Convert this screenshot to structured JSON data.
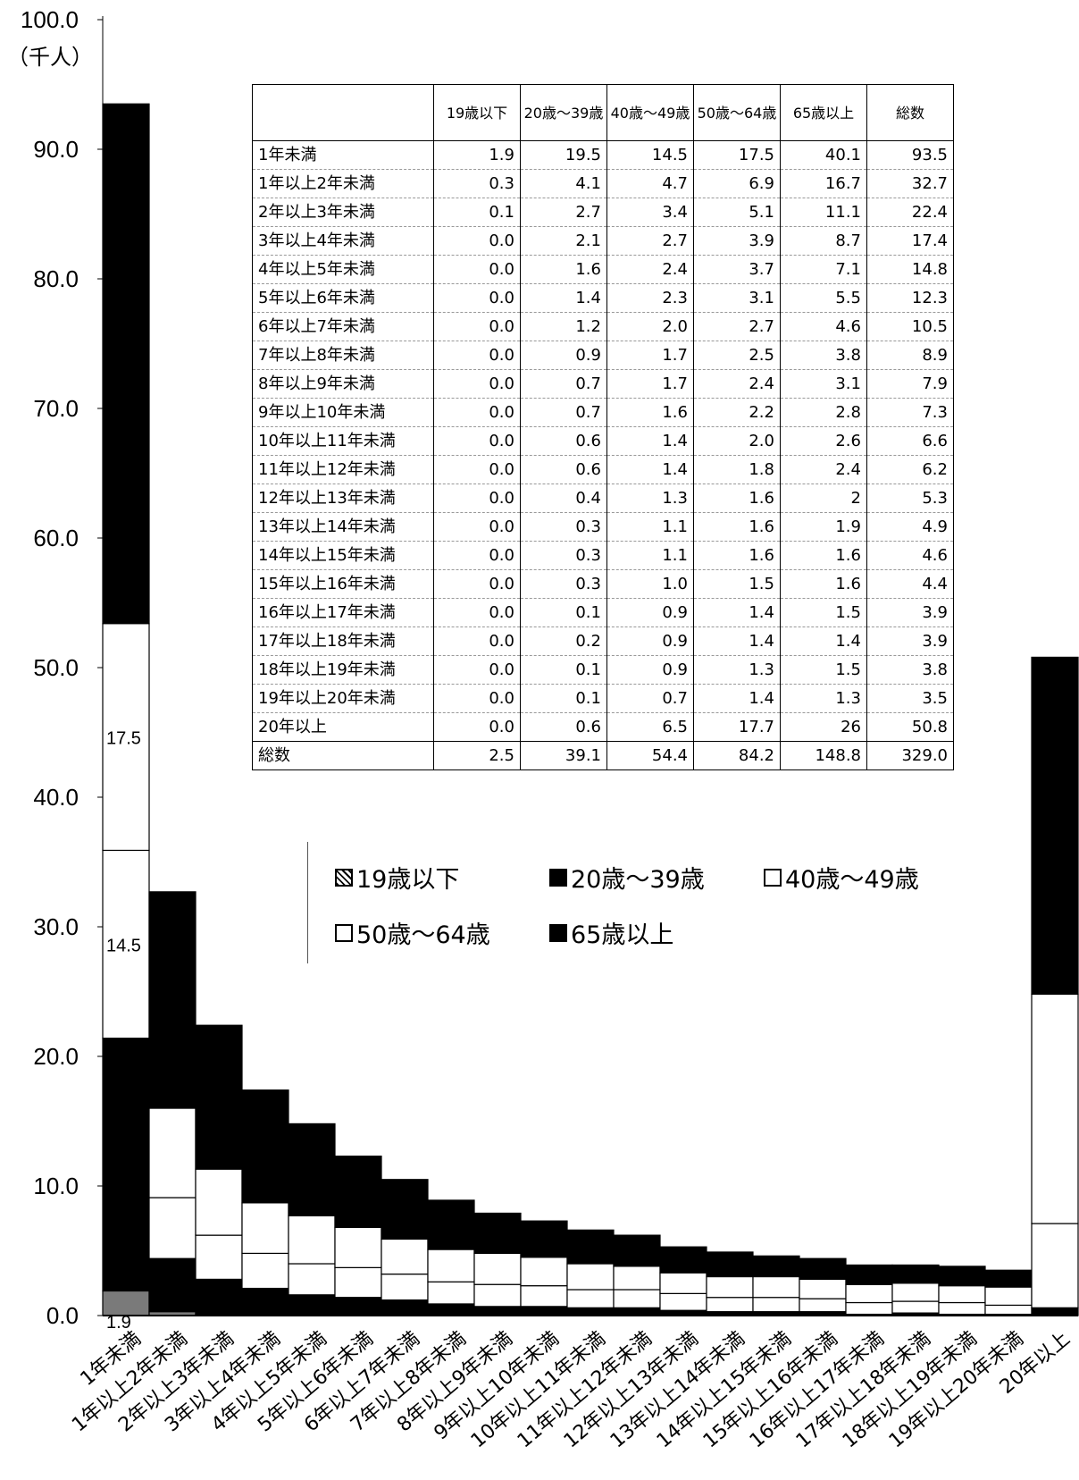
{
  "chart_data": {
    "type": "bar",
    "stacked": true,
    "categories": [
      "1年未満",
      "1年以上2年未満",
      "2年以上3年未満",
      "3年以上4年未満",
      "4年以上5年未満",
      "5年以上6年未満",
      "6年以上7年未満",
      "7年以上8年未満",
      "8年以上9年未満",
      "9年以上10年未満",
      "10年以上11年未満",
      "11年以上12年未満",
      "12年以上13年未満",
      "13年以上14年未満",
      "14年以上15年未満",
      "15年以上16年未満",
      "16年以上17年未満",
      "17年以上18年未満",
      "18年以上19年未満",
      "19年以上20年未満",
      "20年以上"
    ],
    "series": [
      {
        "name": "19歳以下",
        "values": [
          1.9,
          0.3,
          0.1,
          0.0,
          0.0,
          0.0,
          0.0,
          0.0,
          0.0,
          0.0,
          0.0,
          0.0,
          0.0,
          0.0,
          0.0,
          0.0,
          0.0,
          0.0,
          0.0,
          0.0,
          0.0
        ]
      },
      {
        "name": "20歳～39歳",
        "values": [
          19.5,
          4.1,
          2.7,
          2.1,
          1.6,
          1.4,
          1.2,
          0.9,
          0.7,
          0.7,
          0.6,
          0.6,
          0.4,
          0.3,
          0.3,
          0.3,
          0.1,
          0.2,
          0.1,
          0.1,
          0.6
        ]
      },
      {
        "name": "40歳～49歳",
        "values": [
          14.5,
          4.7,
          3.4,
          2.7,
          2.4,
          2.3,
          2.0,
          1.7,
          1.7,
          1.6,
          1.4,
          1.4,
          1.3,
          1.1,
          1.1,
          1.0,
          0.9,
          0.9,
          0.9,
          0.7,
          6.5
        ]
      },
      {
        "name": "50歳～64歳",
        "values": [
          17.5,
          6.9,
          5.1,
          3.9,
          3.7,
          3.1,
          2.7,
          2.5,
          2.4,
          2.2,
          2.0,
          1.8,
          1.6,
          1.6,
          1.6,
          1.5,
          1.4,
          1.4,
          1.3,
          1.4,
          17.7
        ]
      },
      {
        "name": "65歳以上",
        "values": [
          40.1,
          16.7,
          11.1,
          8.7,
          7.1,
          5.5,
          4.6,
          3.8,
          3.1,
          2.8,
          2.6,
          2.4,
          2,
          1.9,
          1.6,
          1.6,
          1.5,
          1.4,
          1.5,
          1.3,
          26
        ]
      }
    ],
    "ylim": [
      0,
      100
    ],
    "yticks": [
      "0.0",
      "10.0",
      "20.0",
      "30.0",
      "40.0",
      "50.0",
      "60.0",
      "70.0",
      "80.0",
      "90.0",
      "100.0"
    ],
    "ylabel": "（千人）",
    "data_labels": [
      "17.5",
      "14.5",
      "1.9"
    ],
    "colors": {
      "19歳以下": "#7a7a7a",
      "20歳～39歳": "#000000",
      "40歳～49歳": "#ffffff",
      "50歳～64歳": "#ffffff",
      "65歳以上": "#000000"
    }
  },
  "table": {
    "headers": [
      "",
      "19歳以下",
      "20歳～39歳",
      "40歳～49歳",
      "50歳～64歳",
      "65歳以上",
      "総数"
    ],
    "rows": [
      [
        "1年未満",
        "1.9",
        "19.5",
        "14.5",
        "17.5",
        "40.1",
        "93.5"
      ],
      [
        "1年以上2年未満",
        "0.3",
        "4.1",
        "4.7",
        "6.9",
        "16.7",
        "32.7"
      ],
      [
        "2年以上3年未満",
        "0.1",
        "2.7",
        "3.4",
        "5.1",
        "11.1",
        "22.4"
      ],
      [
        "3年以上4年未満",
        "0.0",
        "2.1",
        "2.7",
        "3.9",
        "8.7",
        "17.4"
      ],
      [
        "4年以上5年未満",
        "0.0",
        "1.6",
        "2.4",
        "3.7",
        "7.1",
        "14.8"
      ],
      [
        "5年以上6年未満",
        "0.0",
        "1.4",
        "2.3",
        "3.1",
        "5.5",
        "12.3"
      ],
      [
        "6年以上7年未満",
        "0.0",
        "1.2",
        "2.0",
        "2.7",
        "4.6",
        "10.5"
      ],
      [
        "7年以上8年未満",
        "0.0",
        "0.9",
        "1.7",
        "2.5",
        "3.8",
        "8.9"
      ],
      [
        "8年以上9年未満",
        "0.0",
        "0.7",
        "1.7",
        "2.4",
        "3.1",
        "7.9"
      ],
      [
        "9年以上10年未満",
        "0.0",
        "0.7",
        "1.6",
        "2.2",
        "2.8",
        "7.3"
      ],
      [
        "10年以上11年未満",
        "0.0",
        "0.6",
        "1.4",
        "2.0",
        "2.6",
        "6.6"
      ],
      [
        "11年以上12年未満",
        "0.0",
        "0.6",
        "1.4",
        "1.8",
        "2.4",
        "6.2"
      ],
      [
        "12年以上13年未満",
        "0.0",
        "0.4",
        "1.3",
        "1.6",
        "2",
        "5.3"
      ],
      [
        "13年以上14年未満",
        "0.0",
        "0.3",
        "1.1",
        "1.6",
        "1.9",
        "4.9"
      ],
      [
        "14年以上15年未満",
        "0.0",
        "0.3",
        "1.1",
        "1.6",
        "1.6",
        "4.6"
      ],
      [
        "15年以上16年未満",
        "0.0",
        "0.3",
        "1.0",
        "1.5",
        "1.6",
        "4.4"
      ],
      [
        "16年以上17年未満",
        "0.0",
        "0.1",
        "0.9",
        "1.4",
        "1.5",
        "3.9"
      ],
      [
        "17年以上18年未満",
        "0.0",
        "0.2",
        "0.9",
        "1.4",
        "1.4",
        "3.9"
      ],
      [
        "18年以上19年未満",
        "0.0",
        "0.1",
        "0.9",
        "1.3",
        "1.5",
        "3.8"
      ],
      [
        "19年以上20年未満",
        "0.0",
        "0.1",
        "0.7",
        "1.4",
        "1.3",
        "3.5"
      ],
      [
        "20年以上",
        "0.0",
        "0.6",
        "6.5",
        "17.7",
        "26",
        "50.8"
      ]
    ],
    "total_row": [
      "総数",
      "2.5",
      "39.1",
      "54.4",
      "84.2",
      "148.8",
      "329.0"
    ]
  },
  "legend": [
    {
      "label": "19歳以下",
      "swatch": "dotted"
    },
    {
      "label": "20歳～39歳",
      "swatch": "black"
    },
    {
      "label": "40歳～49歳",
      "swatch": "white"
    },
    {
      "label": "50歳～64歳",
      "swatch": "white"
    },
    {
      "label": "65歳以上",
      "swatch": "black"
    }
  ]
}
